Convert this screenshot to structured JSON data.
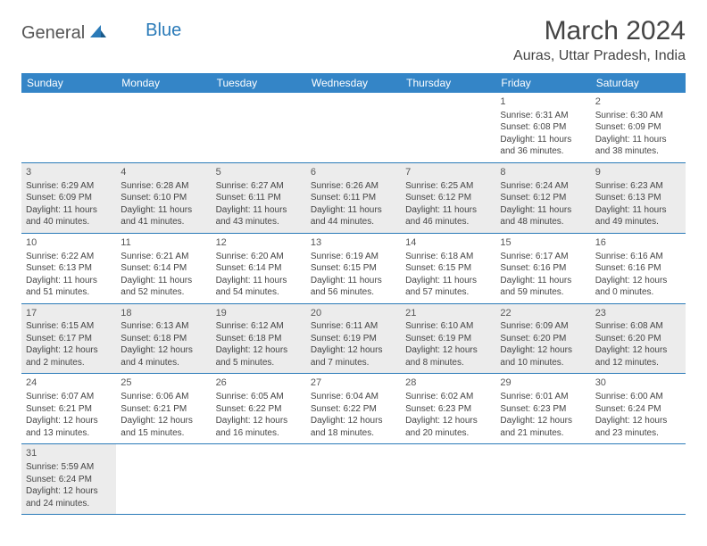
{
  "brand": {
    "general": "General",
    "blue": "Blue"
  },
  "title": "March 2024",
  "location": "Auras, Uttar Pradesh, India",
  "colors": {
    "header_bg": "#3485c7",
    "header_text": "#ffffff",
    "border": "#2a7ab8",
    "shade_bg": "#ececec",
    "text": "#444444",
    "logo_gray": "#555555",
    "logo_blue": "#2a7ab8"
  },
  "dayNames": [
    "Sunday",
    "Monday",
    "Tuesday",
    "Wednesday",
    "Thursday",
    "Friday",
    "Saturday"
  ],
  "weeks": [
    {
      "shade": false,
      "days": [
        null,
        null,
        null,
        null,
        null,
        {
          "n": "1",
          "sunrise": "6:31 AM",
          "sunset": "6:08 PM",
          "daylight": "11 hours and 36 minutes."
        },
        {
          "n": "2",
          "sunrise": "6:30 AM",
          "sunset": "6:09 PM",
          "daylight": "11 hours and 38 minutes."
        }
      ]
    },
    {
      "shade": true,
      "days": [
        {
          "n": "3",
          "sunrise": "6:29 AM",
          "sunset": "6:09 PM",
          "daylight": "11 hours and 40 minutes."
        },
        {
          "n": "4",
          "sunrise": "6:28 AM",
          "sunset": "6:10 PM",
          "daylight": "11 hours and 41 minutes."
        },
        {
          "n": "5",
          "sunrise": "6:27 AM",
          "sunset": "6:11 PM",
          "daylight": "11 hours and 43 minutes."
        },
        {
          "n": "6",
          "sunrise": "6:26 AM",
          "sunset": "6:11 PM",
          "daylight": "11 hours and 44 minutes."
        },
        {
          "n": "7",
          "sunrise": "6:25 AM",
          "sunset": "6:12 PM",
          "daylight": "11 hours and 46 minutes."
        },
        {
          "n": "8",
          "sunrise": "6:24 AM",
          "sunset": "6:12 PM",
          "daylight": "11 hours and 48 minutes."
        },
        {
          "n": "9",
          "sunrise": "6:23 AM",
          "sunset": "6:13 PM",
          "daylight": "11 hours and 49 minutes."
        }
      ]
    },
    {
      "shade": false,
      "days": [
        {
          "n": "10",
          "sunrise": "6:22 AM",
          "sunset": "6:13 PM",
          "daylight": "11 hours and 51 minutes."
        },
        {
          "n": "11",
          "sunrise": "6:21 AM",
          "sunset": "6:14 PM",
          "daylight": "11 hours and 52 minutes."
        },
        {
          "n": "12",
          "sunrise": "6:20 AM",
          "sunset": "6:14 PM",
          "daylight": "11 hours and 54 minutes."
        },
        {
          "n": "13",
          "sunrise": "6:19 AM",
          "sunset": "6:15 PM",
          "daylight": "11 hours and 56 minutes."
        },
        {
          "n": "14",
          "sunrise": "6:18 AM",
          "sunset": "6:15 PM",
          "daylight": "11 hours and 57 minutes."
        },
        {
          "n": "15",
          "sunrise": "6:17 AM",
          "sunset": "6:16 PM",
          "daylight": "11 hours and 59 minutes."
        },
        {
          "n": "16",
          "sunrise": "6:16 AM",
          "sunset": "6:16 PM",
          "daylight": "12 hours and 0 minutes."
        }
      ]
    },
    {
      "shade": true,
      "days": [
        {
          "n": "17",
          "sunrise": "6:15 AM",
          "sunset": "6:17 PM",
          "daylight": "12 hours and 2 minutes."
        },
        {
          "n": "18",
          "sunrise": "6:13 AM",
          "sunset": "6:18 PM",
          "daylight": "12 hours and 4 minutes."
        },
        {
          "n": "19",
          "sunrise": "6:12 AM",
          "sunset": "6:18 PM",
          "daylight": "12 hours and 5 minutes."
        },
        {
          "n": "20",
          "sunrise": "6:11 AM",
          "sunset": "6:19 PM",
          "daylight": "12 hours and 7 minutes."
        },
        {
          "n": "21",
          "sunrise": "6:10 AM",
          "sunset": "6:19 PM",
          "daylight": "12 hours and 8 minutes."
        },
        {
          "n": "22",
          "sunrise": "6:09 AM",
          "sunset": "6:20 PM",
          "daylight": "12 hours and 10 minutes."
        },
        {
          "n": "23",
          "sunrise": "6:08 AM",
          "sunset": "6:20 PM",
          "daylight": "12 hours and 12 minutes."
        }
      ]
    },
    {
      "shade": false,
      "days": [
        {
          "n": "24",
          "sunrise": "6:07 AM",
          "sunset": "6:21 PM",
          "daylight": "12 hours and 13 minutes."
        },
        {
          "n": "25",
          "sunrise": "6:06 AM",
          "sunset": "6:21 PM",
          "daylight": "12 hours and 15 minutes."
        },
        {
          "n": "26",
          "sunrise": "6:05 AM",
          "sunset": "6:22 PM",
          "daylight": "12 hours and 16 minutes."
        },
        {
          "n": "27",
          "sunrise": "6:04 AM",
          "sunset": "6:22 PM",
          "daylight": "12 hours and 18 minutes."
        },
        {
          "n": "28",
          "sunrise": "6:02 AM",
          "sunset": "6:23 PM",
          "daylight": "12 hours and 20 minutes."
        },
        {
          "n": "29",
          "sunrise": "6:01 AM",
          "sunset": "6:23 PM",
          "daylight": "12 hours and 21 minutes."
        },
        {
          "n": "30",
          "sunrise": "6:00 AM",
          "sunset": "6:24 PM",
          "daylight": "12 hours and 23 minutes."
        }
      ]
    },
    {
      "shade": true,
      "days": [
        {
          "n": "31",
          "sunrise": "5:59 AM",
          "sunset": "6:24 PM",
          "daylight": "12 hours and 24 minutes."
        },
        null,
        null,
        null,
        null,
        null,
        null
      ]
    }
  ],
  "labels": {
    "sunrise": "Sunrise:",
    "sunset": "Sunset:",
    "daylight": "Daylight:"
  }
}
